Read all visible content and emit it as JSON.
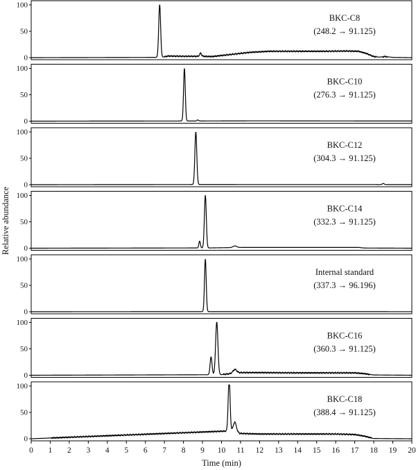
{
  "chart_data": {
    "type": "line",
    "xlabel": "Time (min)",
    "ylabel": "Relative abundance",
    "xlim": [
      0,
      20
    ],
    "ylim": [
      0,
      100
    ],
    "x_ticks": [
      "0",
      "1",
      "2",
      "3",
      "4",
      "5",
      "6",
      "7",
      "8",
      "9",
      "10",
      "11",
      "12",
      "13",
      "14",
      "15",
      "16",
      "17",
      "18",
      "19",
      "20"
    ],
    "y_ticks": [
      "0",
      "50",
      "100"
    ],
    "grid": false,
    "panels": [
      {
        "name": "BKC-C8",
        "transition": "(248.2 → 91.125)",
        "peaks": [
          {
            "t": 6.75,
            "h": 100,
            "w": 0.05
          },
          {
            "t": 8.9,
            "h": 6,
            "w": 0.05
          }
        ],
        "baseline_segments": [
          [
            6.85,
            0.5
          ],
          [
            7.2,
            3
          ],
          [
            8.0,
            2.5
          ],
          [
            9.0,
            2.5
          ],
          [
            9.5,
            2
          ],
          [
            10.5,
            6
          ],
          [
            11.5,
            10
          ],
          [
            12.5,
            12
          ],
          [
            14.0,
            12
          ],
          [
            15.5,
            12
          ],
          [
            16.5,
            12.5
          ],
          [
            17.2,
            12
          ],
          [
            17.6,
            8
          ],
          [
            18.0,
            2
          ],
          [
            18.3,
            1
          ],
          [
            18.6,
            2
          ],
          [
            19.0,
            0.5
          ],
          [
            20.0,
            0
          ]
        ]
      },
      {
        "name": "BKC-C10",
        "transition": "(276.3 → 91.125)",
        "peaks": [
          {
            "t": 8.05,
            "h": 100,
            "w": 0.045
          },
          {
            "t": 8.75,
            "h": 2,
            "w": 0.04
          }
        ],
        "baseline_segments": [
          [
            8.2,
            0.3
          ],
          [
            12,
            0.6
          ],
          [
            16,
            0.4
          ],
          [
            20,
            0.3
          ]
        ]
      },
      {
        "name": "BKC-C12",
        "transition": "(304.3 → 91.125)",
        "peaks": [
          {
            "t": 8.65,
            "h": 100,
            "w": 0.05
          },
          {
            "t": 18.5,
            "h": 2,
            "w": 0.05
          }
        ],
        "baseline_segments": [
          [
            8.85,
            0.3
          ],
          [
            20,
            0.2
          ]
        ]
      },
      {
        "name": "BKC-C14",
        "transition": "(332.3 → 91.125)",
        "peaks": [
          {
            "t": 8.85,
            "h": 13,
            "w": 0.04
          },
          {
            "t": 9.15,
            "h": 100,
            "w": 0.05
          },
          {
            "t": 10.7,
            "h": 3,
            "w": 0.1
          }
        ],
        "baseline_segments": [
          [
            9.35,
            0.5
          ],
          [
            11.2,
            1.5
          ],
          [
            17.2,
            1.5
          ],
          [
            17.5,
            0.3
          ],
          [
            20,
            0
          ]
        ]
      },
      {
        "name": "Internal standard",
        "transition": "(337.3 → 96.196)",
        "peaks": [
          {
            "t": 9.15,
            "h": 100,
            "w": 0.045
          }
        ],
        "baseline_segments": [
          [
            9.35,
            0.2
          ],
          [
            20,
            0.1
          ]
        ]
      },
      {
        "name": "BKC-C16",
        "transition": "(360.3 → 91.125)",
        "peaks": [
          {
            "t": 9.45,
            "h": 34,
            "w": 0.05
          },
          {
            "t": 9.75,
            "h": 100,
            "w": 0.06
          },
          {
            "t": 10.7,
            "h": 7,
            "w": 0.1
          }
        ],
        "baseline_segments": [
          [
            9.95,
            1
          ],
          [
            11.0,
            5
          ],
          [
            12.0,
            5
          ],
          [
            14.0,
            4.5
          ],
          [
            16.0,
            4.5
          ],
          [
            17.0,
            4.5
          ],
          [
            17.5,
            3
          ],
          [
            18.0,
            0.5
          ],
          [
            20,
            0
          ]
        ]
      },
      {
        "name": "BKC-C18",
        "transition": "(388.4 → 91.125)",
        "peaks": [
          {
            "t": 10.4,
            "h": 100,
            "w": 0.05
          },
          {
            "t": 10.7,
            "h": 18,
            "w": 0.08
          }
        ],
        "baseline_segments": [
          [
            10.55,
            15
          ],
          [
            11.0,
            10
          ],
          [
            12.0,
            9
          ],
          [
            14.0,
            9
          ],
          [
            16.0,
            9
          ],
          [
            17.0,
            8
          ],
          [
            17.5,
            5
          ],
          [
            18.0,
            0.5
          ],
          [
            20,
            0
          ]
        ]
      }
    ]
  }
}
